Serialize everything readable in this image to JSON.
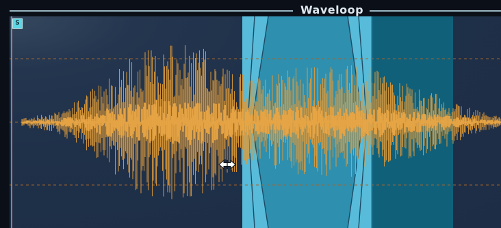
{
  "title": "Waveloop",
  "badge_label": "S",
  "colors": {
    "panel_background": "#1f3049",
    "waveform": "#dd9a3a",
    "loop_region": "#2f8fae",
    "outer_region": "#10607a",
    "crossfade": "#5ec3e0",
    "grid_dashes": "#a3652c",
    "playhead": "#d98080",
    "title_line": "#9ab8c4"
  },
  "icons": {
    "badge": "solo-badge-icon",
    "cursor": "resize-horizontal-cursor-icon"
  }
}
